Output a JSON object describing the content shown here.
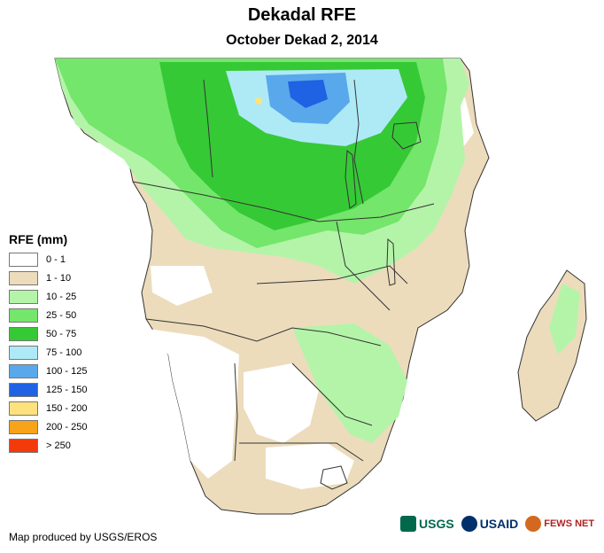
{
  "header": {
    "title": "Dekadal RFE",
    "subtitle": "October Dekad 2, 2014"
  },
  "legend": {
    "title": "RFE (mm)",
    "items": [
      {
        "label": "0 - 1",
        "color": "#ffffff"
      },
      {
        "label": "1 - 10",
        "color": "#ecdcbc"
      },
      {
        "label": "10 - 25",
        "color": "#b4f4a9"
      },
      {
        "label": "25 - 50",
        "color": "#74e66b"
      },
      {
        "label": "50 - 75",
        "color": "#36c936"
      },
      {
        "label": "75 - 100",
        "color": "#aeeaf6"
      },
      {
        "label": "100 - 125",
        "color": "#5aa8ec"
      },
      {
        "label": "125 - 150",
        "color": "#1f62e3"
      },
      {
        "label": "150 - 200",
        "color": "#fde27e"
      },
      {
        "label": "200 - 250",
        "color": "#f8a31a"
      },
      {
        "label": "> 250",
        "color": "#f23a0b"
      }
    ]
  },
  "footer": {
    "credit": "Map produced by USGS/EROS",
    "logos": [
      "USGS",
      "USAID",
      "FEWS NET"
    ]
  }
}
